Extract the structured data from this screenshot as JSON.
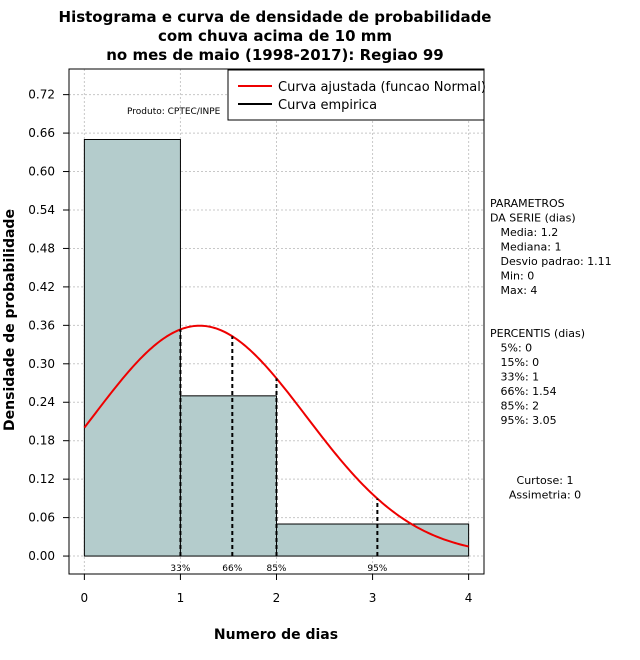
{
  "chart_data": {
    "type": "bar",
    "title_lines": [
      "Histograma e curva de densidade de probabilidade",
      "com chuva acima de 10 mm",
      "no mes de maio (1998-2017): Regiao 99"
    ],
    "xlabel": "Numero de dias",
    "ylabel": "Densidade de probabilidade",
    "xlim": [
      -0.16,
      4.16
    ],
    "ylim": [
      -0.028,
      0.76
    ],
    "xticks": [
      "0",
      "1",
      "2",
      "3",
      "4"
    ],
    "yticks": [
      "0.00",
      "0.06",
      "0.12",
      "0.18",
      "0.24",
      "0.30",
      "0.36",
      "0.42",
      "0.48",
      "0.54",
      "0.60",
      "0.66",
      "0.72"
    ],
    "grid": true,
    "bins": [
      {
        "start": 0,
        "end": 1,
        "density": 0.65
      },
      {
        "start": 1,
        "end": 2,
        "density": 0.25
      },
      {
        "start": 2,
        "end": 4,
        "density": 0.05
      }
    ],
    "bar_color": "#b4cccc",
    "normal_curve": {
      "name": "Curva ajustada (funcao Normal)",
      "mean": 1.2,
      "sd": 1.11,
      "color": "#ee0000"
    },
    "empirical": {
      "name": "Curva empirica",
      "color": "#000000"
    },
    "percentile_markers": [
      {
        "label": "33%",
        "x": 1
      },
      {
        "label": "66%",
        "x": 1.54
      },
      {
        "label": "85%",
        "x": 2
      },
      {
        "label": "95%",
        "x": 3.05
      }
    ],
    "product_label": "Produto: CPTEC/INPE",
    "params_block": [
      "PARAMETROS",
      "DA SERIE (dias)",
      "   Media: 1.2",
      "   Mediana: 1",
      "   Desvio padrao: 1.11",
      "   Min: 0",
      "   Max: 4"
    ],
    "percentis_block": [
      "PERCENTIS (dias)",
      "   5%: 0",
      "   15%: 0",
      "   33%: 1",
      "   66%: 1.54",
      "   85%: 2",
      "   95%: 3.05"
    ],
    "stats_block": [
      "Curtose: 1",
      "Assimetria: 0"
    ]
  }
}
